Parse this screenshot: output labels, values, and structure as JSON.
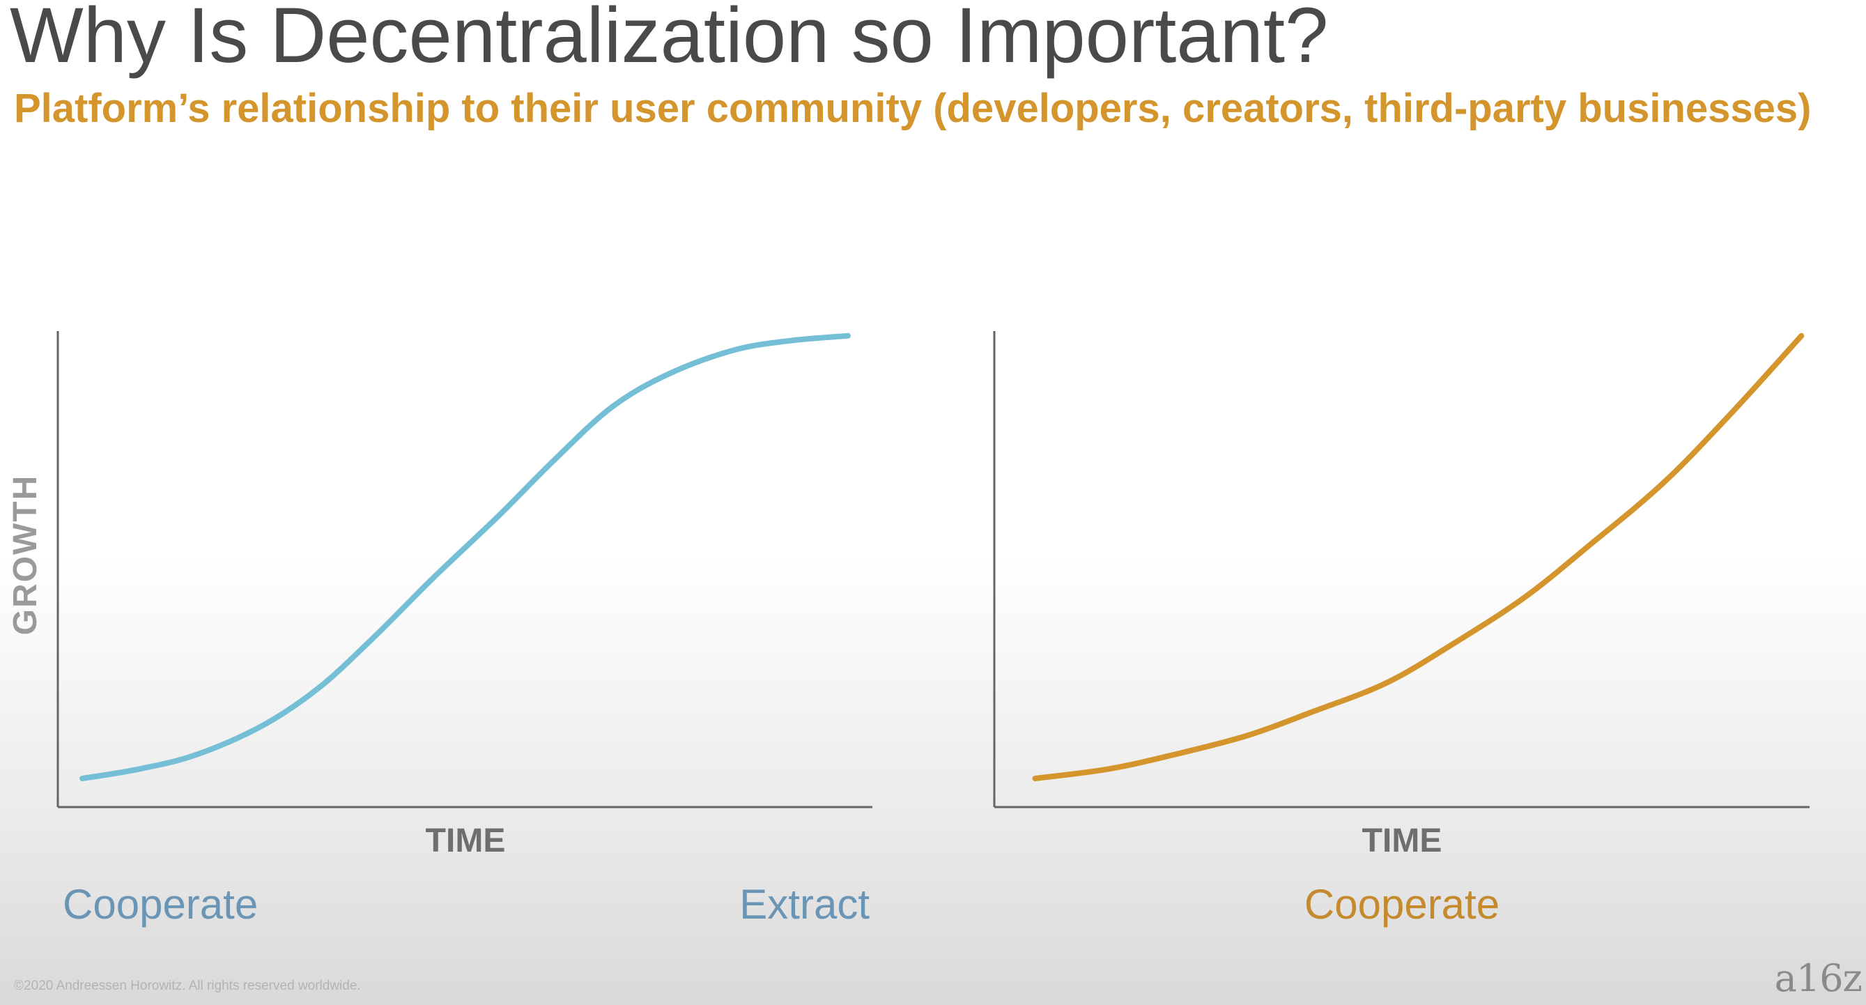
{
  "slide": {
    "title": "Why Is Decentralization so Important?",
    "subtitle": "Platform’s relationship to their user community (developers, creators, third-party businesses)",
    "copyright": "©2020 Andreessen Horowitz. All rights reserved worldwide.",
    "logo_text": "a16z"
  },
  "chart_data": [
    {
      "type": "line",
      "title": "",
      "xlabel": "TIME",
      "ylabel": "GROWTH",
      "xlim": [
        0,
        1
      ],
      "ylim": [
        0,
        1
      ],
      "grid": false,
      "annotations": [
        {
          "text": "Cooperate",
          "position": "below-left",
          "color": "#6a95b5"
        },
        {
          "text": "Extract",
          "position": "below-right",
          "color": "#6a95b5"
        }
      ],
      "series": [
        {
          "color": "#74bfd6",
          "x": [
            0.03,
            0.1,
            0.17,
            0.25,
            0.32,
            0.39,
            0.46,
            0.54,
            0.61,
            0.68,
            0.75,
            0.83,
            0.9,
            0.97
          ],
          "y": [
            0.06,
            0.08,
            0.11,
            0.17,
            0.25,
            0.36,
            0.48,
            0.61,
            0.73,
            0.84,
            0.91,
            0.96,
            0.98,
            0.99
          ]
        }
      ]
    },
    {
      "type": "line",
      "title": "",
      "xlabel": "TIME",
      "ylabel": "",
      "xlim": [
        0,
        1
      ],
      "ylim": [
        0,
        1
      ],
      "grid": false,
      "annotations": [
        {
          "text": "Cooperate",
          "position": "below-center",
          "color": "#c58a2e"
        }
      ],
      "series": [
        {
          "color": "#d4952d",
          "x": [
            0.05,
            0.14,
            0.22,
            0.31,
            0.39,
            0.48,
            0.56,
            0.65,
            0.73,
            0.82,
            0.9,
            0.99
          ],
          "y": [
            0.06,
            0.08,
            0.11,
            0.15,
            0.2,
            0.26,
            0.34,
            0.44,
            0.55,
            0.68,
            0.82,
            0.99
          ]
        }
      ]
    }
  ]
}
